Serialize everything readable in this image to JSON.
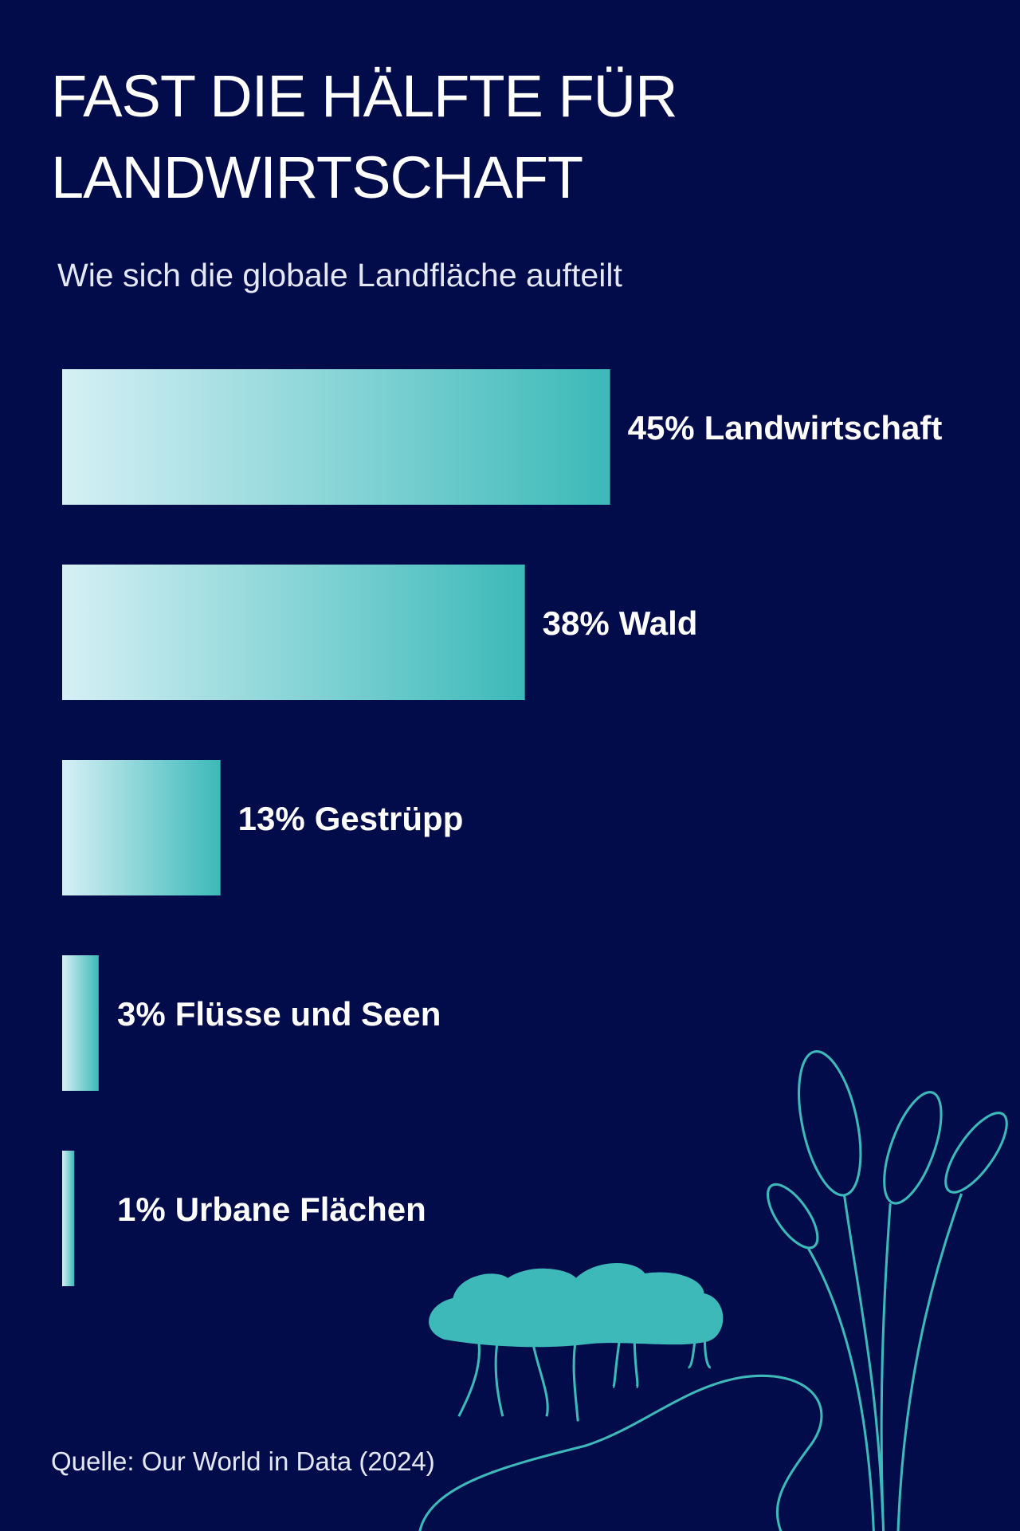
{
  "chart_data": {
    "type": "bar",
    "orientation": "horizontal",
    "title": "FAST DIE HÄLFTE FÜR LANDWIRTSCHAFT",
    "subtitle": "Wie sich die globale Landfläche aufteilt",
    "categories": [
      "Landwirtschaft",
      "Wald",
      "Gestrüpp",
      "Flüsse und Seen",
      "Urbane Flächen"
    ],
    "values": [
      45,
      38,
      13,
      3,
      1
    ],
    "value_labels": [
      "45%",
      "38%",
      "13%",
      "3%",
      "1%"
    ],
    "colors": [
      "#d6f0f5",
      "#3cb9b8"
    ],
    "source": "Quelle: Our World in Data (2024)"
  }
}
